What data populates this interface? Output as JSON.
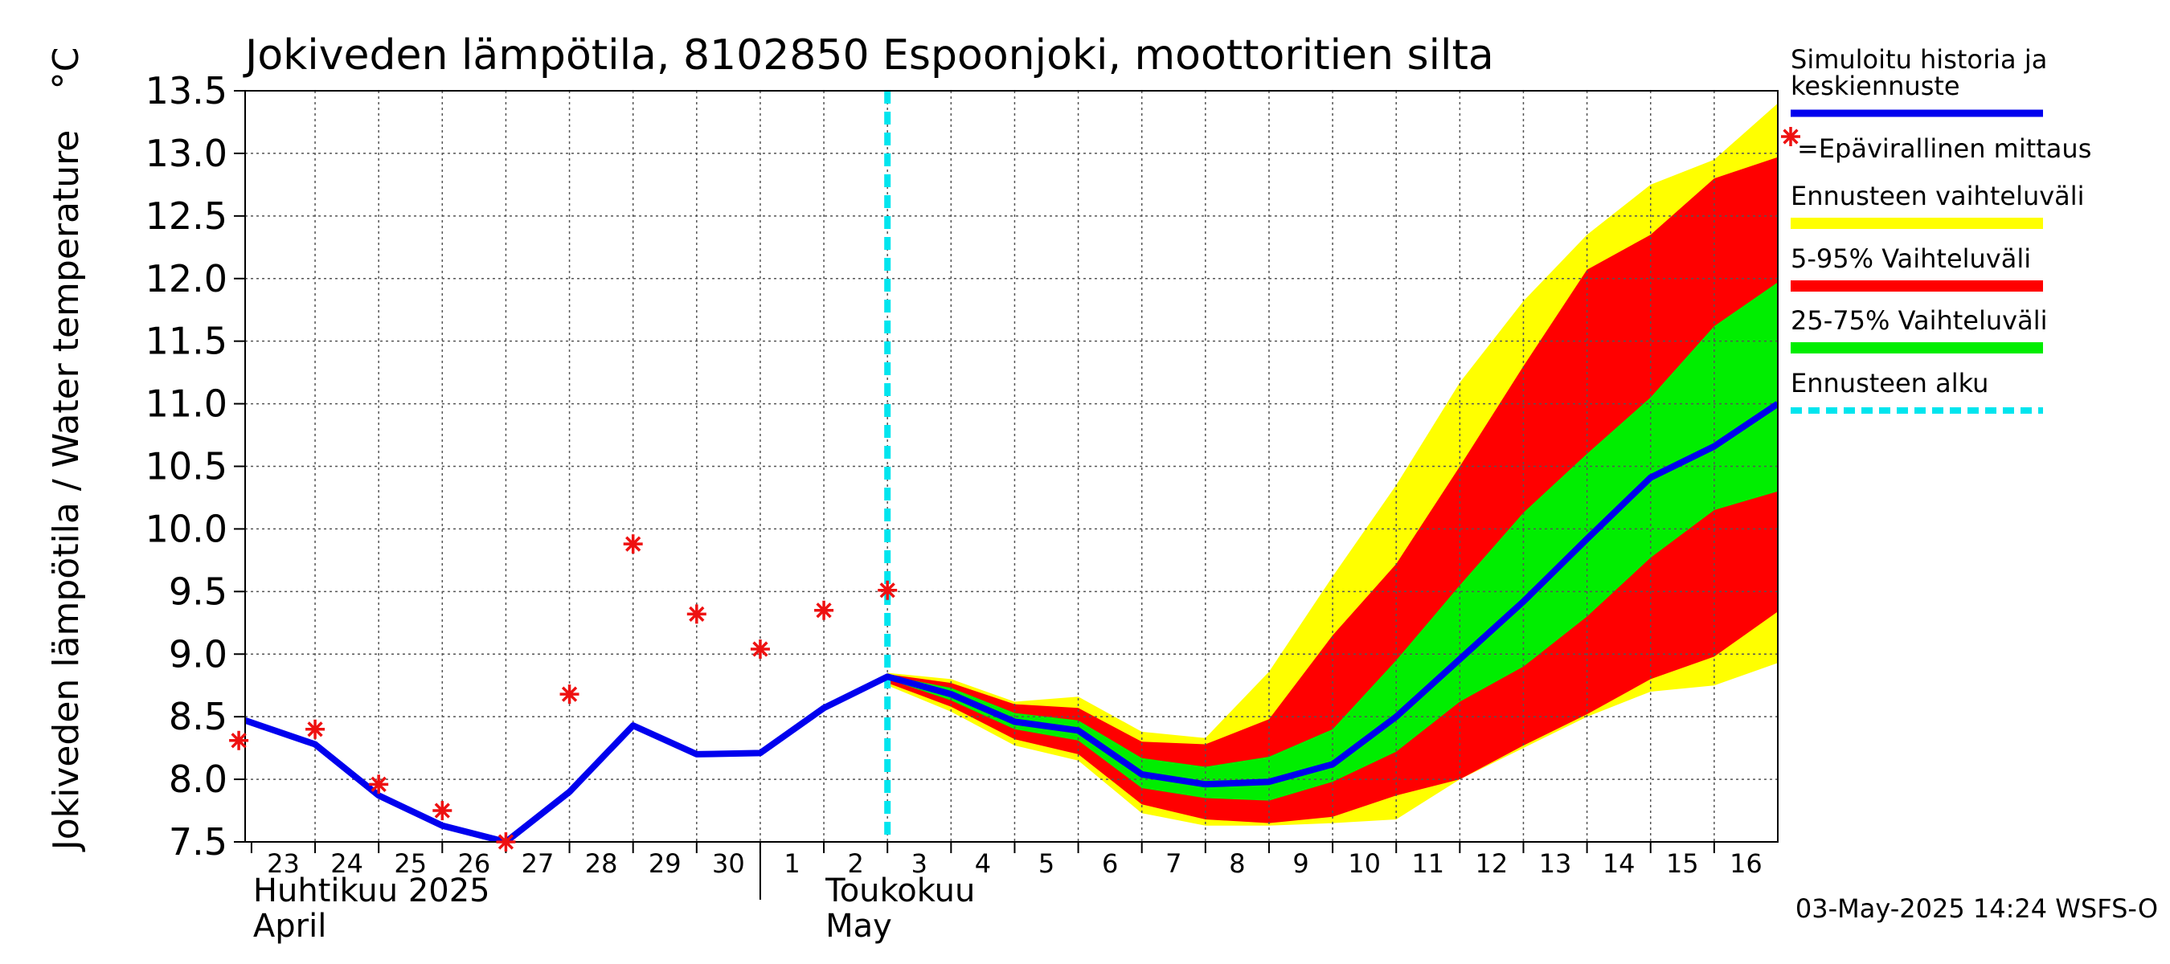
{
  "chart_data": {
    "type": "line",
    "title": "Jokiveden lämpötila, 8102850 Espoonjoki, moottoritien silta",
    "ylabel": "Jokiveden lämpötila / Water temperature",
    "yunit": "°C",
    "ylim": [
      7.5,
      13.5
    ],
    "yticks": [
      "7.5",
      "8.0",
      "8.5",
      "9.0",
      "9.5",
      "10.0",
      "10.5",
      "11.0",
      "11.5",
      "12.0",
      "12.5",
      "13.0",
      "13.5"
    ],
    "x_ticks": [
      {
        "day": "23",
        "x": 0
      },
      {
        "day": "24",
        "x": 1
      },
      {
        "day": "25",
        "x": 2
      },
      {
        "day": "26",
        "x": 3
      },
      {
        "day": "27",
        "x": 4
      },
      {
        "day": "28",
        "x": 5
      },
      {
        "day": "29",
        "x": 6
      },
      {
        "day": "30",
        "x": 7
      },
      {
        "day": "1",
        "x": 8
      },
      {
        "day": "2",
        "x": 9
      },
      {
        "day": "3",
        "x": 10
      },
      {
        "day": "4",
        "x": 11
      },
      {
        "day": "5",
        "x": 12
      },
      {
        "day": "6",
        "x": 13
      },
      {
        "day": "7",
        "x": 14
      },
      {
        "day": "8",
        "x": 15
      },
      {
        "day": "9",
        "x": 16
      },
      {
        "day": "10",
        "x": 17
      },
      {
        "day": "11",
        "x": 18
      },
      {
        "day": "12",
        "x": 19
      },
      {
        "day": "13",
        "x": 20
      },
      {
        "day": "14",
        "x": 21
      },
      {
        "day": "15",
        "x": 22
      },
      {
        "day": "16",
        "x": 23
      }
    ],
    "xlim": [
      -0.1,
      24
    ],
    "months": [
      {
        "fi": "Huhtikuu  2025",
        "en": "April",
        "x": 0
      },
      {
        "fi": "Toukokuu",
        "en": "May",
        "x": 9
      }
    ],
    "month_separator_x": 8,
    "forecast_start_x": 10,
    "simulated": {
      "x": [
        -0.1,
        1,
        2,
        3,
        4,
        5,
        6,
        7,
        8,
        9,
        10,
        11,
        12,
        13,
        14,
        15,
        16,
        17,
        18,
        19,
        20,
        21,
        22,
        23,
        24
      ],
      "y": [
        8.47,
        8.28,
        7.87,
        7.63,
        7.5,
        7.9,
        8.43,
        8.2,
        8.21,
        8.57,
        8.82,
        8.68,
        8.46,
        8.39,
        8.04,
        7.96,
        7.98,
        8.12,
        8.5,
        8.96,
        9.42,
        9.92,
        10.41,
        10.66,
        11.0
      ]
    },
    "observations": {
      "x": [
        -0.2,
        1,
        2,
        3,
        4,
        5,
        6,
        7,
        8,
        9,
        10
      ],
      "y": [
        8.31,
        8.4,
        7.96,
        7.75,
        7.5,
        8.68,
        9.88,
        9.32,
        9.04,
        9.35,
        9.51
      ]
    },
    "band_x": [
      10,
      11,
      12,
      13,
      14,
      15,
      16,
      17,
      18,
      19,
      20,
      21,
      22,
      23,
      24
    ],
    "band_total": {
      "upper": [
        8.85,
        8.8,
        8.62,
        8.66,
        8.38,
        8.33,
        8.86,
        9.62,
        10.35,
        11.17,
        11.82,
        12.35,
        12.75,
        12.95,
        13.4
      ],
      "lower": [
        8.75,
        8.54,
        8.27,
        8.15,
        7.73,
        7.63,
        7.63,
        7.65,
        7.68,
        8.0,
        8.25,
        8.5,
        8.7,
        8.75,
        8.93
      ]
    },
    "band_5_95": {
      "upper": [
        8.84,
        8.77,
        8.6,
        8.57,
        8.3,
        8.28,
        8.48,
        9.15,
        9.72,
        10.5,
        11.3,
        12.07,
        12.35,
        12.8,
        12.97
      ]
    },
    "band_5_95_lower": [
      8.77,
      8.58,
      8.32,
      8.2,
      7.8,
      7.68,
      7.65,
      7.7,
      7.87,
      8.0,
      8.27,
      8.52,
      8.8,
      8.98,
      9.34
    ],
    "band_25_75": {
      "upper": [
        8.83,
        8.73,
        8.53,
        8.47,
        8.17,
        8.1,
        8.18,
        8.4,
        8.95,
        9.55,
        10.13,
        10.6,
        11.05,
        11.62,
        11.97
      ]
    },
    "band_25_75_lower": [
      8.8,
      8.63,
      8.4,
      8.31,
      7.93,
      7.85,
      7.83,
      7.98,
      8.22,
      8.62,
      8.9,
      9.3,
      9.77,
      10.15,
      10.3
    ],
    "colors": {
      "simulated": "#0000ee",
      "observations": "#ee1111",
      "band_total": "#ffff00",
      "band_5_95": "#ff0000",
      "band_25_75": "#00ee00",
      "forecast_start": "#00e5ee"
    },
    "legend": {
      "position": "right",
      "simulated_line1": "Simuloitu historia ja",
      "simulated_line2": "keskiennuste",
      "observations": "=Epävirallinen mittaus",
      "band_total": "Ennusteen vaihteluväli",
      "band_5_95": "5-95% Vaihteluväli",
      "band_25_75": "25-75% Vaihteluväli",
      "forecast_start": "Ennusteen alku"
    },
    "grid": true
  },
  "footer": "03-May-2025 14:24 WSFS-O"
}
